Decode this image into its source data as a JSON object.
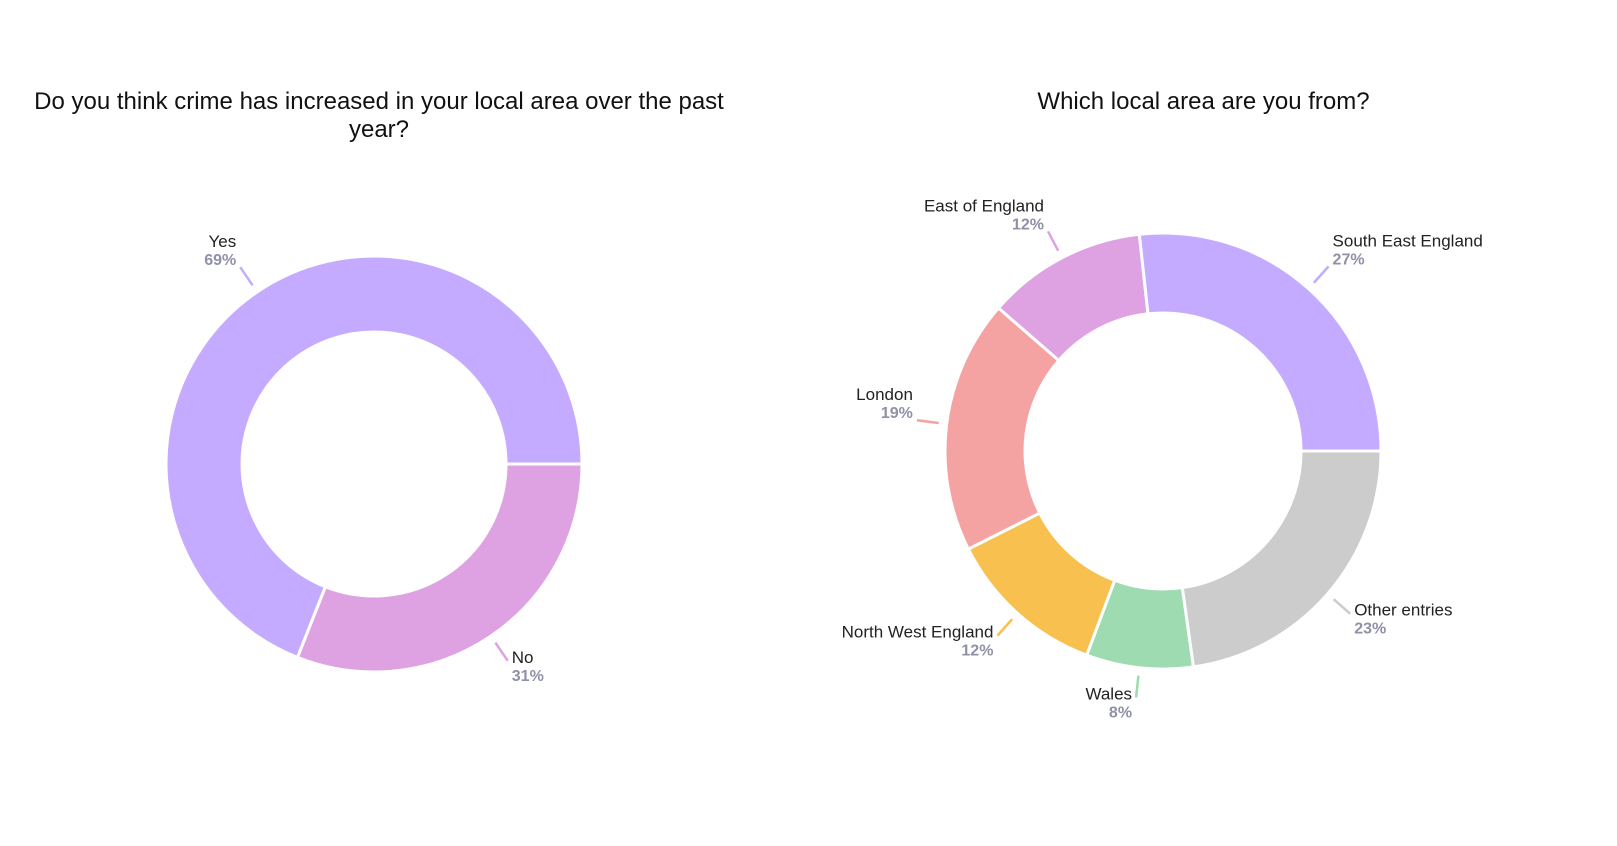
{
  "chart_data": [
    {
      "type": "pie",
      "title": "Do you think crime has increased in your local area over the past year?",
      "categories": [
        "Yes",
        "No"
      ],
      "values": [
        69,
        31
      ],
      "labels": [
        "69%",
        "31%"
      ],
      "colors": [
        "#c4abff",
        "#dea2e3"
      ]
    },
    {
      "type": "pie",
      "title": "Which local area are you from?",
      "categories": [
        "South East England",
        "Other entries",
        "Wales",
        "North West England",
        "London",
        "East of England"
      ],
      "values": [
        27,
        23,
        8,
        12,
        19,
        12
      ],
      "labels": [
        "27%",
        "23%",
        "8%",
        "12%",
        "19%",
        "12%"
      ],
      "colors": [
        "#c4abff",
        "#cccccc",
        "#9edbb0",
        "#f7c04f",
        "#f4a2a2",
        "#dea2e3"
      ]
    }
  ]
}
